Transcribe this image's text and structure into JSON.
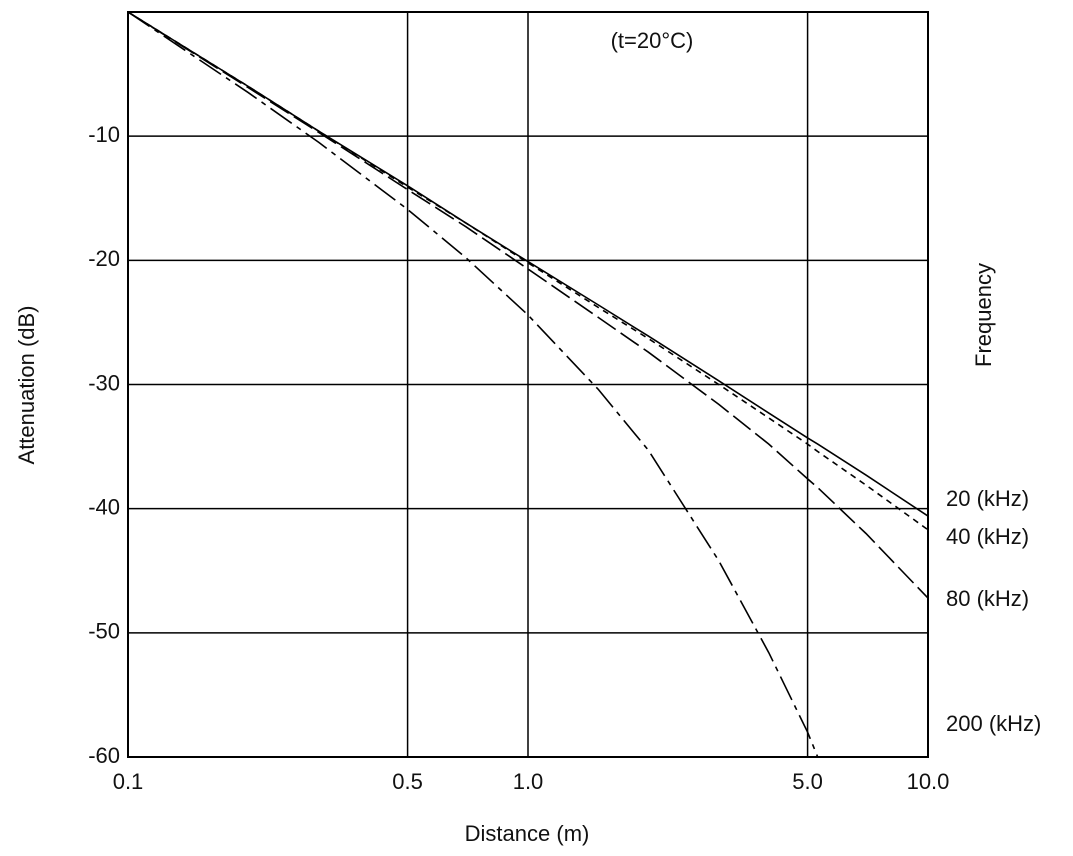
{
  "chart_data": {
    "type": "line",
    "annotation": "(t=20°C)",
    "x_label": "Distance (m)",
    "y_label": "Attenuation (dB)",
    "legend_title": "Frequency",
    "x": [
      0.1,
      0.2,
      0.3,
      0.5,
      0.7,
      1,
      1.5,
      2,
      3,
      4,
      5,
      5.3,
      7,
      10
    ],
    "series": [
      {
        "name": "20 (kHz)",
        "color": "#000000",
        "style": "solid",
        "values": [
          0,
          -6.0,
          -9.6,
          -14.0,
          -17.0,
          -20.1,
          -23.6,
          -26.1,
          -29.7,
          -32.3,
          -34.3,
          -34.8,
          -37.3,
          -40.6
        ]
      },
      {
        "name": "40 (kHz)",
        "color": "#000000",
        "style": "dashed",
        "values": [
          0,
          -6.0,
          -9.6,
          -14.1,
          -17.0,
          -20.2,
          -23.8,
          -26.3,
          -30.0,
          -32.7,
          -34.8,
          -35.4,
          -38.1,
          -41.7
        ]
      },
      {
        "name": "80 (kHz)",
        "color": "#000000",
        "style": "long-dashed",
        "values": [
          0,
          -6.1,
          -9.7,
          -14.3,
          -17.3,
          -20.7,
          -24.6,
          -27.4,
          -31.6,
          -34.8,
          -37.6,
          -38.3,
          -42.0,
          -47.2
        ]
      },
      {
        "name": "200 (kHz)",
        "color": "#000000",
        "style": "dash-dot",
        "values": [
          0,
          -6.5,
          -10.5,
          -15.9,
          -19.8,
          -24.4,
          -30.4,
          -35.3,
          -44.2,
          -51.6,
          -58.0,
          -60.0,
          null,
          null
        ]
      }
    ],
    "xscale": "log",
    "xlim": [
      0.1,
      10
    ],
    "xticks": [
      0.1,
      0.5,
      {
        "value": 1,
        "label": "1.0"
      },
      {
        "value": 5,
        "label": "5.0"
      },
      {
        "value": 10,
        "label": "10.0"
      }
    ],
    "ylim": [
      -60,
      0
    ],
    "yticks": [
      -60,
      -50,
      -40,
      -30,
      -20,
      -10
    ],
    "grid": true
  }
}
